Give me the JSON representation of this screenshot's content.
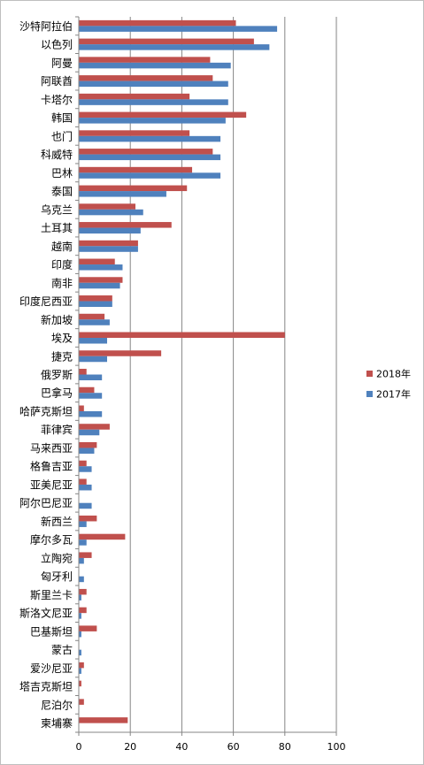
{
  "chart_data": {
    "type": "bar",
    "orientation": "horizontal",
    "categories": [
      "沙特阿拉伯",
      "以色列",
      "阿曼",
      "阿联酋",
      "卡塔尔",
      "韩国",
      "也门",
      "科威特",
      "巴林",
      "泰国",
      "乌克兰",
      "土耳其",
      "越南",
      "印度",
      "南非",
      "印度尼西亚",
      "新加坡",
      "埃及",
      "捷克",
      "俄罗斯",
      "巴拿马",
      "哈萨克斯坦",
      "菲律宾",
      "马来西亚",
      "格鲁吉亚",
      "亚美尼亚",
      "阿尔巴尼亚",
      "新西兰",
      "摩尔多瓦",
      "立陶宛",
      "匈牙利",
      "斯里兰卡",
      "斯洛文尼亚",
      "巴基斯坦",
      "蒙古",
      "爱沙尼亚",
      "塔吉克斯坦",
      "尼泊尔",
      "柬埔寨"
    ],
    "series": [
      {
        "name": "2018年",
        "color": "#c0504d",
        "values": [
          61,
          68,
          51,
          52,
          43,
          65,
          43,
          52,
          44,
          42,
          22,
          36,
          23,
          14,
          17,
          13,
          10,
          80,
          32,
          3,
          6,
          2,
          12,
          7,
          3,
          3,
          0,
          7,
          18,
          5,
          0,
          3,
          3,
          7,
          0,
          2,
          1,
          2,
          19
        ]
      },
      {
        "name": "2017年",
        "color": "#4f81bd",
        "values": [
          77,
          74,
          59,
          58,
          58,
          57,
          55,
          55,
          55,
          34,
          25,
          24,
          23,
          17,
          16,
          13,
          12,
          11,
          11,
          9,
          9,
          9,
          8,
          6,
          5,
          5,
          5,
          3,
          3,
          2,
          2,
          1,
          1,
          1,
          1,
          1,
          0,
          0,
          0
        ]
      }
    ],
    "xlim": [
      0,
      100
    ],
    "xticks": [
      0,
      20,
      40,
      60,
      80,
      100
    ],
    "grid": true,
    "legend": "right"
  }
}
